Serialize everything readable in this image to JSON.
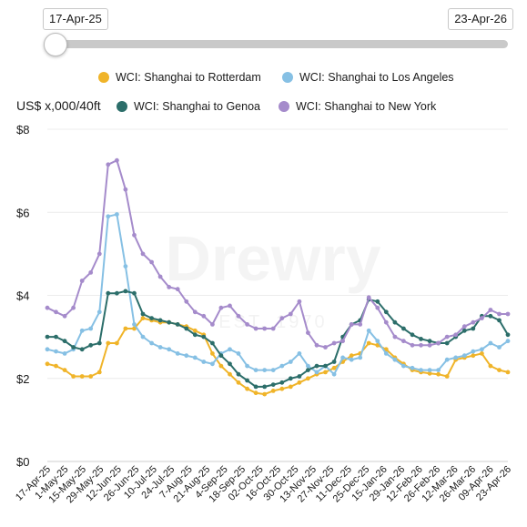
{
  "range": {
    "start_label": "17-Apr-25",
    "end_label": "23-Apr-26",
    "slider_position": 0
  },
  "legend": [
    {
      "name": "WCI: Shanghai to Rotterdam",
      "color": "#f0b429"
    },
    {
      "name": "WCI: Shanghai to Los Angeles",
      "color": "#86c0e4"
    },
    {
      "name": "WCI: Shanghai to Genoa",
      "color": "#2c6e6a"
    },
    {
      "name": "WCI: Shanghai to New York",
      "color": "#a58bcb"
    }
  ],
  "unit_label": "US$ x,000/40ft",
  "watermark": {
    "brand": "Drewry",
    "est": "EST. 1970"
  },
  "chart_data": {
    "type": "line",
    "ylabel": "US$ x,000/40ft",
    "ylim": [
      0,
      8
    ],
    "ytick_labels": [
      "$0",
      "$2",
      "$4",
      "$6",
      "$8"
    ],
    "ytick_values": [
      0,
      2,
      4,
      6,
      8
    ],
    "grid": true,
    "legend_position": "top",
    "xtick_labels": [
      "17-Apr-25",
      "1-May-25",
      "15-May-25",
      "29-May-25",
      "12-Jun-25",
      "26-Jun-25",
      "10-Jul-25",
      "24-Jul-25",
      "7-Aug-25",
      "21-Aug-25",
      "4-Sep-25",
      "18-Sep-25",
      "02-Oct-25",
      "16-Oct-25",
      "30-Oct-25",
      "13-Nov-25",
      "27-Nov-25",
      "11-Dec-25",
      "25-Dec-25",
      "15-Jan-26",
      "29-Jan-26",
      "12-Feb-26",
      "26-Feb-26",
      "12-Mar-26",
      "26-Mar-26",
      "09-Apr-26",
      "23-Apr-26"
    ],
    "x": [
      "17-Apr-25",
      "24-Apr-25",
      "1-May-25",
      "8-May-25",
      "15-May-25",
      "22-May-25",
      "29-May-25",
      "5-Jun-25",
      "12-Jun-25",
      "19-Jun-25",
      "26-Jun-25",
      "3-Jul-25",
      "10-Jul-25",
      "17-Jul-25",
      "24-Jul-25",
      "31-Jul-25",
      "7-Aug-25",
      "14-Aug-25",
      "21-Aug-25",
      "28-Aug-25",
      "4-Sep-25",
      "11-Sep-25",
      "18-Sep-25",
      "25-Sep-25",
      "02-Oct-25",
      "09-Oct-25",
      "16-Oct-25",
      "23-Oct-25",
      "30-Oct-25",
      "06-Nov-25",
      "13-Nov-25",
      "20-Nov-25",
      "27-Nov-25",
      "04-Dec-25",
      "11-Dec-25",
      "18-Dec-25",
      "25-Dec-25",
      "01-Jan-26",
      "08-Jan-26",
      "15-Jan-26",
      "22-Jan-26",
      "29-Jan-26",
      "05-Feb-26",
      "12-Feb-26",
      "19-Feb-26",
      "26-Feb-26",
      "05-Mar-26",
      "12-Mar-26",
      "19-Mar-26",
      "26-Mar-26",
      "02-Apr-26",
      "09-Apr-26",
      "16-Apr-26",
      "23-Apr-26"
    ],
    "series": [
      {
        "name": "WCI: Shanghai to Rotterdam",
        "color": "#f0b429",
        "values": [
          2.35,
          2.3,
          2.2,
          2.05,
          2.05,
          2.05,
          2.15,
          2.85,
          2.85,
          3.2,
          3.2,
          3.45,
          3.4,
          3.35,
          3.35,
          3.3,
          3.25,
          3.15,
          3.05,
          2.6,
          2.3,
          2.1,
          1.9,
          1.75,
          1.65,
          1.62,
          1.7,
          1.75,
          1.8,
          1.9,
          2.0,
          2.1,
          2.15,
          2.25,
          2.4,
          2.55,
          2.6,
          2.85,
          2.8,
          2.7,
          2.5,
          2.35,
          2.2,
          2.15,
          2.12,
          2.1,
          2.05,
          2.45,
          2.5,
          2.55,
          2.6,
          2.3,
          2.2,
          2.15
        ]
      },
      {
        "name": "WCI: Shanghai to Los Angeles",
        "color": "#86c0e4",
        "values": [
          2.7,
          2.65,
          2.6,
          2.7,
          3.15,
          3.2,
          3.6,
          5.9,
          5.95,
          4.7,
          3.3,
          3.0,
          2.85,
          2.75,
          2.7,
          2.6,
          2.55,
          2.5,
          2.4,
          2.35,
          2.6,
          2.7,
          2.6,
          2.3,
          2.2,
          2.2,
          2.2,
          2.3,
          2.4,
          2.6,
          2.3,
          2.15,
          2.3,
          2.1,
          2.5,
          2.45,
          2.5,
          3.15,
          2.9,
          2.6,
          2.45,
          2.3,
          2.25,
          2.2,
          2.2,
          2.2,
          2.45,
          2.5,
          2.55,
          2.65,
          2.7,
          2.85,
          2.75,
          2.9
        ]
      },
      {
        "name": "WCI: Shanghai to Genoa",
        "color": "#2c6e6a",
        "values": [
          3.0,
          3.0,
          2.9,
          2.75,
          2.7,
          2.8,
          2.85,
          4.05,
          4.05,
          4.1,
          4.05,
          3.55,
          3.45,
          3.4,
          3.35,
          3.3,
          3.2,
          3.05,
          3.0,
          2.85,
          2.55,
          2.35,
          2.1,
          1.95,
          1.8,
          1.8,
          1.85,
          1.9,
          2.0,
          2.05,
          2.2,
          2.3,
          2.3,
          2.4,
          3.0,
          3.3,
          3.4,
          3.9,
          3.85,
          3.6,
          3.35,
          3.2,
          3.05,
          2.95,
          2.9,
          2.85,
          2.85,
          3.0,
          3.15,
          3.2,
          3.5,
          3.5,
          3.4,
          3.05
        ]
      },
      {
        "name": "WCI: Shanghai to New York",
        "color": "#a58bcb",
        "values": [
          3.7,
          3.6,
          3.5,
          3.7,
          4.35,
          4.55,
          5.0,
          7.15,
          7.25,
          6.55,
          5.45,
          5.0,
          4.8,
          4.45,
          4.2,
          4.15,
          3.85,
          3.6,
          3.5,
          3.3,
          3.7,
          3.75,
          3.5,
          3.3,
          3.2,
          3.2,
          3.2,
          3.45,
          3.55,
          3.85,
          3.1,
          2.8,
          2.75,
          2.85,
          2.9,
          3.3,
          3.3,
          3.95,
          3.7,
          3.35,
          3.0,
          2.9,
          2.8,
          2.8,
          2.8,
          2.85,
          3.0,
          3.05,
          3.25,
          3.35,
          3.45,
          3.65,
          3.55,
          3.55
        ]
      }
    ]
  }
}
